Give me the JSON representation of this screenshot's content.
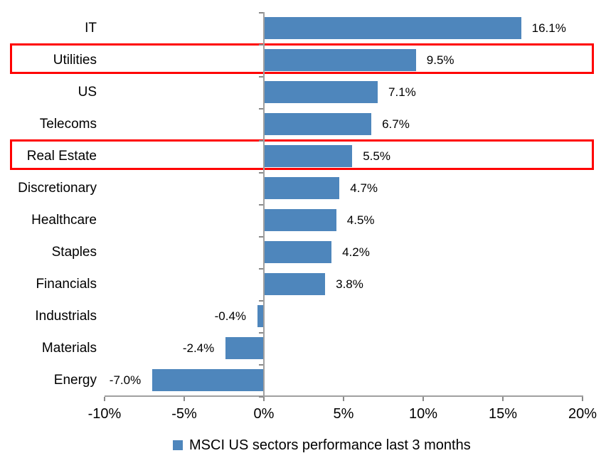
{
  "chart_data": {
    "type": "bar",
    "orientation": "horizontal",
    "title": "",
    "categories": [
      "IT",
      "Utilities",
      "US",
      "Telecoms",
      "Real Estate",
      "Discretionary",
      "Healthcare",
      "Staples",
      "Financials",
      "Industrials",
      "Materials",
      "Energy"
    ],
    "values": [
      16.1,
      9.5,
      7.1,
      6.7,
      5.5,
      4.7,
      4.5,
      4.2,
      3.8,
      -0.4,
      -2.4,
      -7.0
    ],
    "value_labels": [
      "16.1%",
      "9.5%",
      "7.1%",
      "6.7%",
      "5.5%",
      "4.7%",
      "4.5%",
      "4.2%",
      "3.8%",
      "-0.4%",
      "-2.4%",
      "-7.0%"
    ],
    "highlighted_categories": [
      "Utilities",
      "Real Estate"
    ],
    "x_tick_labels": [
      "-10%",
      "-5%",
      "0%",
      "5%",
      "10%",
      "15%",
      "20%"
    ],
    "x_tick_values": [
      -10,
      -5,
      0,
      5,
      10,
      15,
      20
    ],
    "xlim": [
      -10,
      20
    ],
    "grid": "off",
    "legend_position": "bottom",
    "legend": "MSCI US sectors performance last 3 months",
    "colors": {
      "bar": "#4E86BC",
      "highlight_border": "#FF0000",
      "axis_line": "#A0A0A0",
      "axis_tick": "#898989",
      "text": "#000000"
    }
  }
}
